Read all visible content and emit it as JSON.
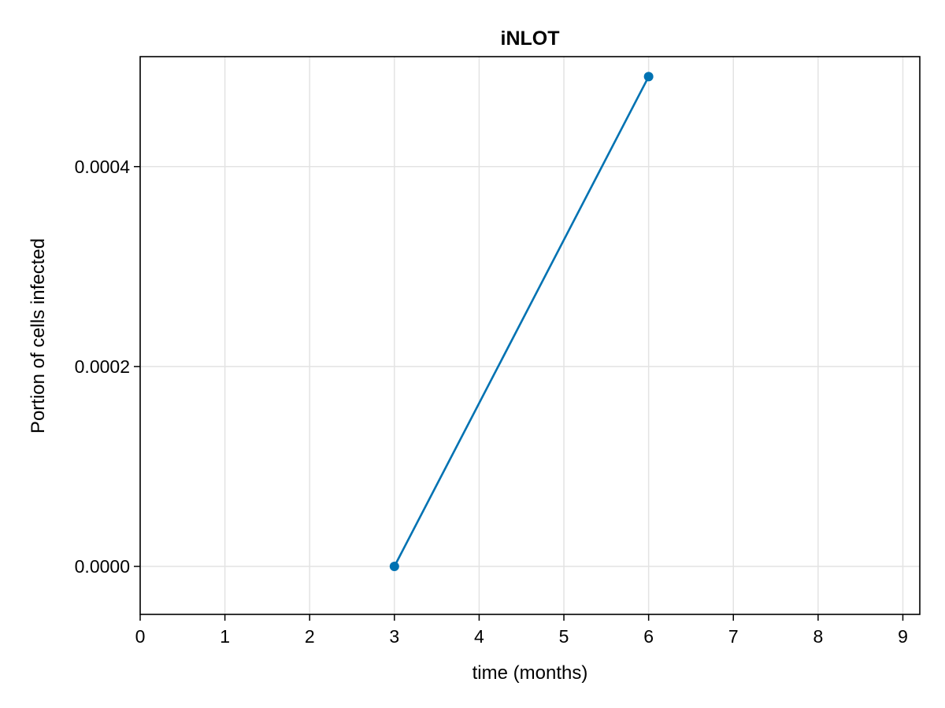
{
  "chart_data": {
    "type": "line",
    "title": "iNLOT",
    "xlabel": "time (months)",
    "ylabel": "Portion of cells infected",
    "xlim": [
      0,
      9.2
    ],
    "ylim": [
      -4.8e-05,
      0.00051
    ],
    "xticks": [
      0,
      1,
      2,
      3,
      4,
      5,
      6,
      7,
      8,
      9
    ],
    "xtick_labels": [
      "0",
      "1",
      "2",
      "3",
      "4",
      "5",
      "6",
      "7",
      "8",
      "9"
    ],
    "yticks": [
      0,
      0.0002,
      0.0004
    ],
    "ytick_labels": [
      "0.0000",
      "0.0002",
      "0.0004"
    ],
    "grid": true,
    "legend": "none",
    "series": [
      {
        "x": [
          3,
          6
        ],
        "y": [
          0,
          0.00049
        ],
        "color": "#0072b2",
        "markers": true
      }
    ]
  }
}
